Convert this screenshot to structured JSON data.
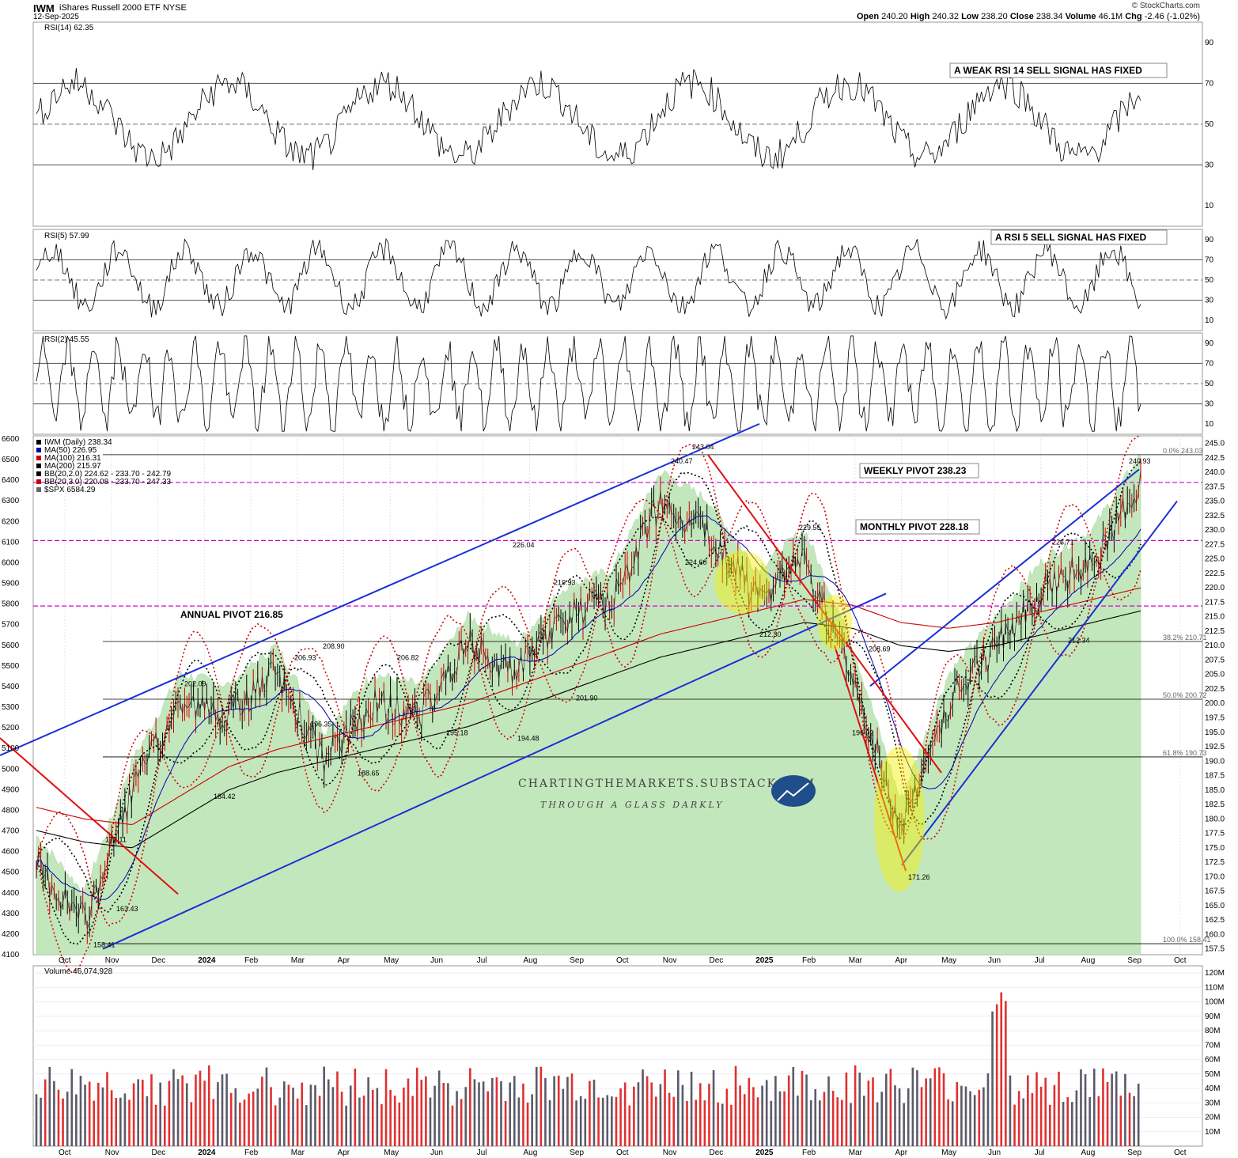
{
  "header": {
    "symbol": "IWM",
    "name": "iShares Russell 2000 ETF",
    "exchange": "NYSE",
    "date": "12-Sep-2025",
    "copyright": "© StockCharts.com",
    "open_label": "Open",
    "open": "240.20",
    "high_label": "High",
    "high": "240.32",
    "low_label": "Low",
    "low": "238.20",
    "close_label": "Close",
    "close": "238.34",
    "volume_label": "Volume",
    "volume": "46.1M",
    "chg_label": "Chg",
    "chg": "-2.46 (-1.02%)"
  },
  "panels": {
    "rsi14": {
      "label": "RSI(14) 62.35",
      "note": "A WEAK RSI 14 SELL SIGNAL HAS FIXED",
      "ticks": [
        "90",
        "70",
        "50",
        "30",
        "10"
      ]
    },
    "rsi5": {
      "label": "RSI(5) 57.99",
      "note": "A RSI 5 SELL SIGNAL HAS FIXED",
      "ticks": [
        "90",
        "70",
        "50",
        "30",
        "10"
      ]
    },
    "rsi2": {
      "label": "RSI(2) 45.55",
      "ticks": [
        "90",
        "70",
        "50",
        "30",
        "10"
      ]
    },
    "price": {
      "legend": [
        "IWM (Daily) 238.34",
        "MA(50) 226.95",
        "MA(100) 216.31",
        "MA(200) 215.97",
        "BB(20,2.0) 224.62 - 233.70 - 242.79",
        "BB(20,3.0) 220.08 - 233.70 - 247.33",
        "$SPX 6584.29"
      ],
      "legend_colors": [
        "#000000",
        "#0000aa",
        "#cc0000",
        "#000000",
        "#000000",
        "#cc0000",
        "#666666"
      ],
      "right_ticks": [
        "245.0",
        "242.5",
        "240.0",
        "237.5",
        "235.0",
        "232.5",
        "230.0",
        "227.5",
        "225.0",
        "222.5",
        "220.0",
        "217.5",
        "215.0",
        "212.5",
        "210.0",
        "207.5",
        "205.0",
        "202.5",
        "200.0",
        "197.5",
        "195.0",
        "192.5",
        "190.0",
        "187.5",
        "185.0",
        "182.5",
        "180.0",
        "177.5",
        "175.0",
        "172.5",
        "170.0",
        "167.5",
        "165.0",
        "162.5",
        "160.0",
        "157.5"
      ],
      "left_ticks": [
        "6600",
        "6500",
        "6400",
        "6300",
        "6200",
        "6100",
        "6000",
        "5900",
        "5800",
        "5700",
        "5600",
        "5500",
        "5400",
        "5300",
        "5200",
        "5100",
        "5000",
        "4900",
        "4800",
        "4700",
        "4600",
        "4500",
        "4400",
        "4300",
        "4200",
        "4100"
      ],
      "notes": {
        "weekly": "WEEKLY PIVOT 238.23",
        "monthly": "MONTHLY PIVOT 228.18",
        "annual": "ANNUAL PIVOT 216.85"
      },
      "fibs": [
        "0.0% 243.03",
        "38.2% 210.71",
        "50.0% 200.72",
        "61.8% 190.73",
        "100.0% 158.41"
      ],
      "level_labels": [
        "243.04",
        "240.47",
        "240.93",
        "226.04",
        "224.60",
        "219.93",
        "229.55",
        "226.71",
        "212.30",
        "208.69",
        "212.34",
        "202.09",
        "206.93",
        "208.90",
        "206.82",
        "196.35",
        "201.90",
        "195.18",
        "194.48",
        "196.02",
        "188.65",
        "184.42",
        "172.11",
        "163.43",
        "158.41",
        "171.26"
      ],
      "watermark1": "CHARTINGTHEMARKETS.SUBSTACK.COM",
      "watermark2": "THROUGH A GLASS DARKLY"
    },
    "volume": {
      "label": "Volume 46,074,928",
      "ticks": [
        "120M",
        "110M",
        "100M",
        "90M",
        "80M",
        "70M",
        "60M",
        "50M",
        "40M",
        "30M",
        "20M",
        "10M"
      ]
    }
  },
  "x_axis": {
    "months": [
      "Oct",
      "Nov",
      "Dec",
      "2024",
      "Feb",
      "Mar",
      "Apr",
      "May",
      "Jun",
      "Jul",
      "Aug",
      "Sep",
      "Oct",
      "Nov",
      "Dec",
      "2025",
      "Feb",
      "Mar",
      "Apr",
      "May",
      "Jun",
      "Jul",
      "Aug",
      "Sep",
      "Oct"
    ]
  },
  "chart_data": {
    "type": "line",
    "title": "IWM iShares Russell 2000 ETF NYSE",
    "ylabel": "",
    "ylim": [
      157.5,
      245
    ],
    "x": [
      "Oct 2023",
      "Nov 2023",
      "Dec 2023",
      "Jan 2024",
      "Feb 2024",
      "Mar 2024",
      "Apr 2024",
      "May 2024",
      "Jun 2024",
      "Jul 2024",
      "Aug 2024",
      "Sep 2024",
      "Oct 2024",
      "Nov 2024",
      "Dec 2024",
      "Jan 2025",
      "Feb 2025",
      "Mar 2025",
      "Apr 2025",
      "May 2025",
      "Jun 2025",
      "Jul 2025",
      "Aug 2025",
      "Sep 2025"
    ],
    "series": [
      {
        "name": "IWM (Daily) 238.34",
        "values": [
          172,
          162,
          185,
          200,
          198,
          205,
          190,
          200,
          198,
          210,
          205,
          215,
          218,
          235,
          230,
          218,
          225,
          205,
          178,
          200,
          210,
          220,
          225,
          238
        ]
      },
      {
        "name": "MA(200) 215.97",
        "values": [
          178,
          176,
          175,
          180,
          185,
          188,
          190,
          192,
          194,
          196,
          199,
          202,
          205,
          208,
          210,
          212,
          214,
          213,
          210,
          209,
          210,
          212,
          214,
          216
        ]
      }
    ],
    "pivots": {
      "annual": 216.85,
      "monthly": 228.18,
      "weekly": 238.23
    },
    "last": {
      "open": 240.2,
      "high": 240.32,
      "low": 238.2,
      "close": 238.34,
      "volume": 46074928
    }
  }
}
